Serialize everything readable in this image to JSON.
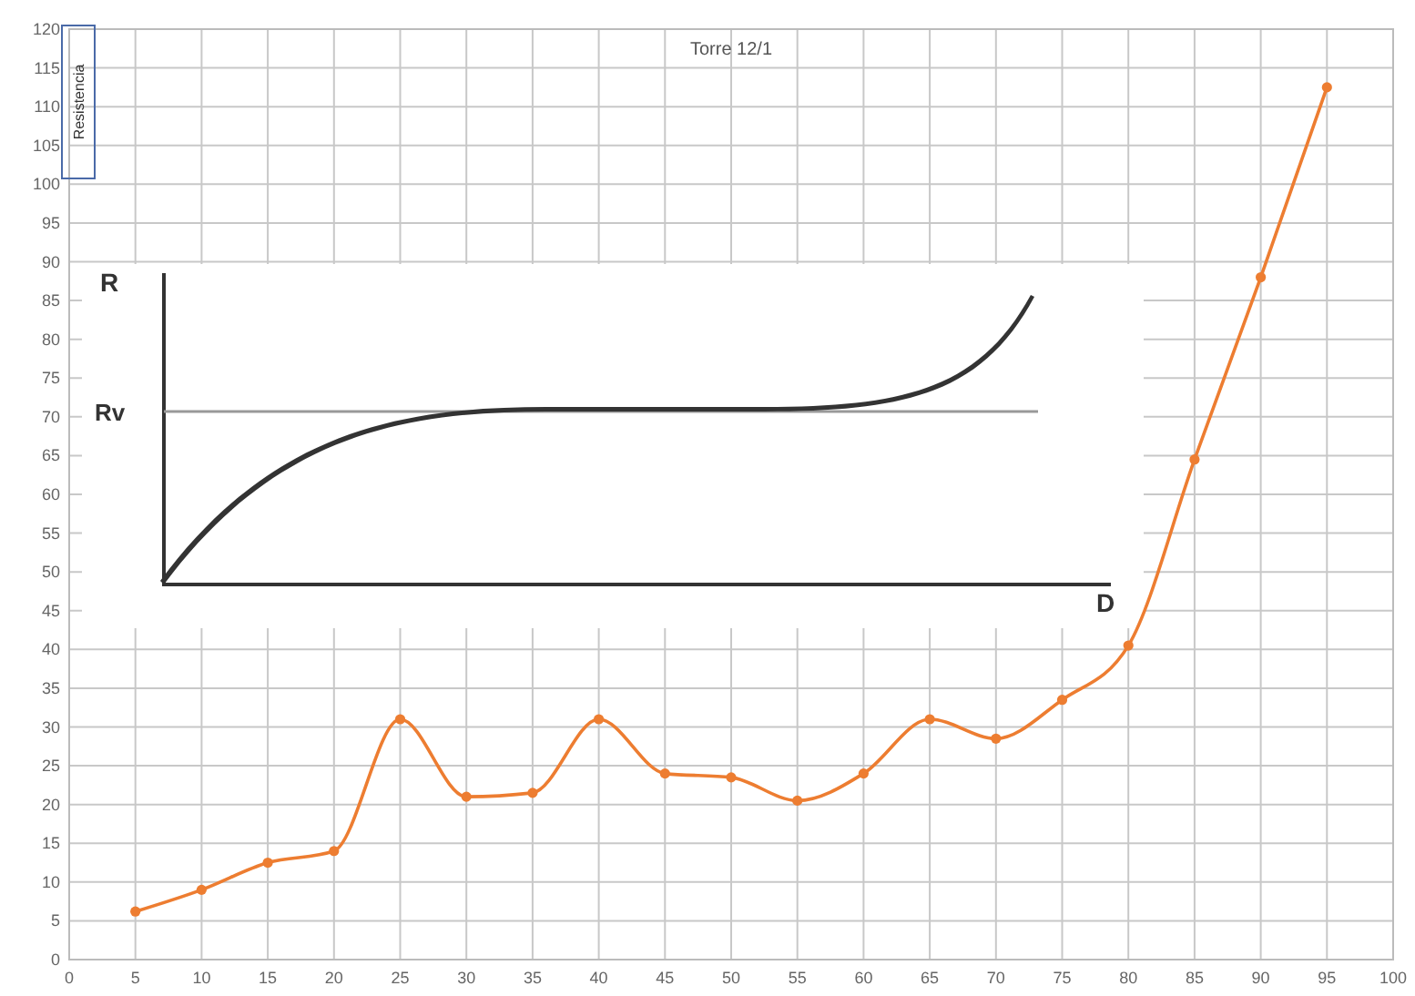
{
  "chart_data": {
    "type": "line",
    "title": "Torre 12/1",
    "ylabel": "Resistencia",
    "x": [
      5,
      10,
      15,
      20,
      25,
      30,
      35,
      40,
      45,
      50,
      55,
      60,
      65,
      70,
      75,
      80,
      85,
      90,
      95
    ],
    "series": [
      {
        "color": "#ed7d31",
        "values": [
          6.2,
          9,
          12.5,
          14,
          31,
          21,
          21.5,
          31,
          24,
          23.5,
          20.5,
          24,
          31,
          28.5,
          33.5,
          40.5,
          64.5,
          88,
          112.5
        ]
      }
    ],
    "xlim": [
      0,
      100
    ],
    "xticks": [
      0,
      5,
      10,
      15,
      20,
      25,
      30,
      35,
      40,
      45,
      50,
      55,
      60,
      65,
      70,
      75,
      80,
      85,
      90,
      95,
      100
    ],
    "ylim": [
      0,
      120
    ],
    "yticks": [
      0,
      5,
      10,
      15,
      20,
      25,
      30,
      35,
      40,
      45,
      50,
      55,
      60,
      65,
      70,
      75,
      80,
      85,
      90,
      95,
      100,
      105,
      110,
      115,
      120
    ],
    "grid": true,
    "marker": "circle",
    "line_style": "solid",
    "annotations": [
      "R",
      "Rv",
      "D"
    ]
  }
}
